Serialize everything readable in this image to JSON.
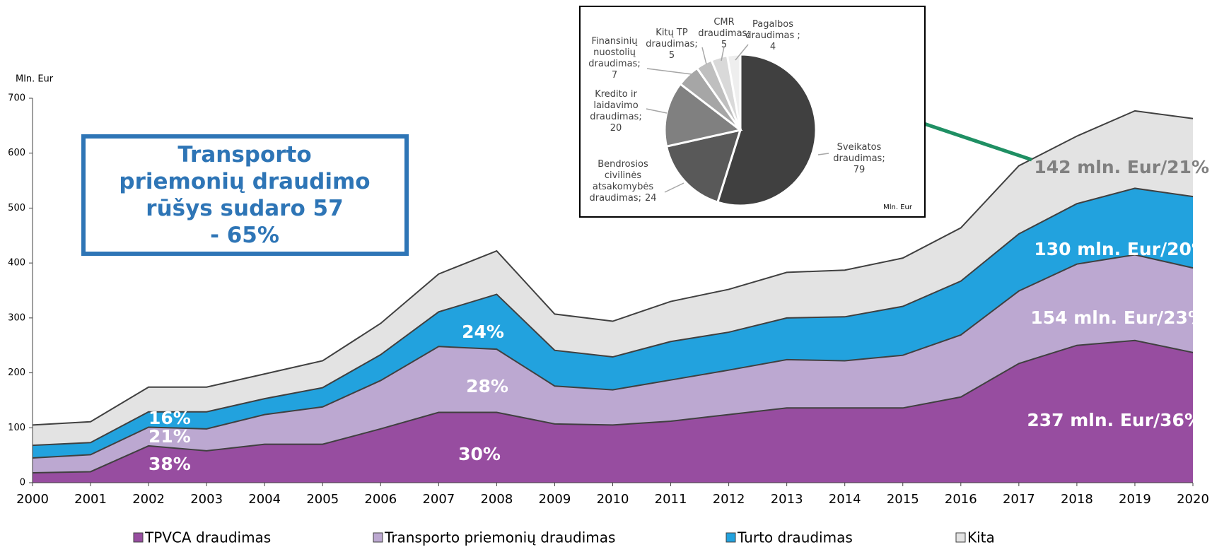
{
  "chart_data": [
    {
      "type": "stacked_area",
      "y_axis_label": "Mln. Eur",
      "categories": [
        "2000",
        "2001",
        "2002",
        "2003",
        "2004",
        "2005",
        "2006",
        "2007",
        "2008",
        "2009",
        "2010",
        "2011",
        "2012",
        "2013",
        "2014",
        "2015",
        "2016",
        "2017",
        "2018",
        "2019",
        "2020"
      ],
      "series": [
        {
          "name": "TPVCA draudimas",
          "color": "#974da0",
          "values": [
            18,
            20,
            67,
            58,
            70,
            70,
            98,
            128,
            128,
            107,
            105,
            112,
            124,
            136,
            136,
            136,
            156,
            217,
            250,
            259,
            237
          ]
        },
        {
          "name": "Transporto priemonių draudimas",
          "color": "#bca8d1",
          "values": [
            27,
            31,
            34,
            40,
            54,
            68,
            88,
            120,
            115,
            69,
            64,
            75,
            81,
            88,
            86,
            96,
            113,
            132,
            148,
            156,
            154
          ]
        },
        {
          "name": "Turto draudimas",
          "color": "#22a2de",
          "values": [
            23,
            22,
            28,
            31,
            29,
            35,
            47,
            63,
            100,
            65,
            60,
            70,
            69,
            76,
            80,
            89,
            98,
            104,
            110,
            121,
            130
          ]
        },
        {
          "name": "Kita",
          "color": "#e3e3e3",
          "values": [
            37,
            38,
            45,
            45,
            45,
            49,
            57,
            69,
            79,
            66,
            65,
            73,
            78,
            83,
            85,
            88,
            97,
            124,
            123,
            141,
            142
          ]
        }
      ],
      "ylim": [
        0,
        700
      ],
      "yticks": [
        0,
        100,
        200,
        300,
        400,
        500,
        600,
        700
      ],
      "annotations": [
        "16%",
        "21%",
        "38%",
        "30%",
        "28%",
        "24%",
        "142 mln. Eur/21%",
        "130 mln. Eur/20%",
        "154 mln. Eur/23%",
        "237 mln. Eur/36%"
      ],
      "text_box": "Transporto priemonių draudimo rūšys sudaro 57 - 65%"
    },
    {
      "type": "pie",
      "units": "Mln. Eur",
      "labels": [
        [
          "Sveikatos",
          "draudimas;"
        ],
        [
          "Bendrosios",
          "civilinės",
          "atsakomybės",
          "draudimas;"
        ],
        [
          "Kredito ir",
          "laidavimo",
          "draudimas;"
        ],
        [
          "Finansinių",
          "nuostolių",
          "draudimas;"
        ],
        [
          "Kitų TP",
          "draudimas;"
        ],
        [
          "CMR",
          "draudimas;"
        ],
        [
          "Pagalbos",
          "draudimas ;"
        ]
      ],
      "values": [
        79,
        24,
        20,
        7,
        5,
        5,
        4
      ],
      "colors": [
        "#404040",
        "#595959",
        "#808080",
        "#a6a6a6",
        "#bfbfbf",
        "#d9d9d9",
        "#eeeeee"
      ]
    }
  ]
}
